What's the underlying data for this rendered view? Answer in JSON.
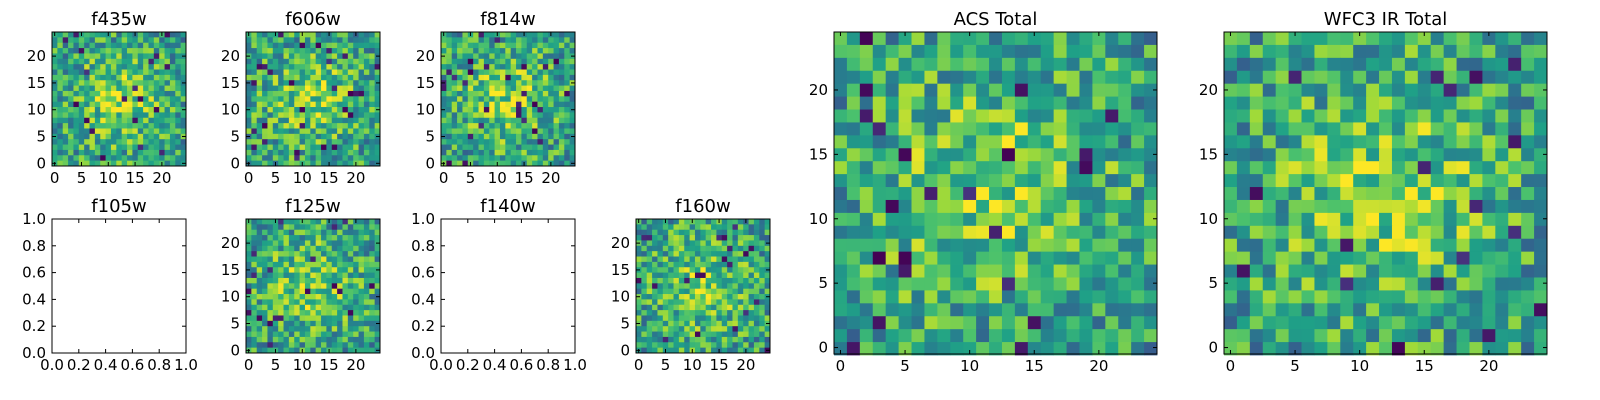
{
  "figure": {
    "panels": [
      {
        "key": "f435w",
        "title": "f435w",
        "kind": "image",
        "xticks": [
          "0",
          "5",
          "10",
          "15",
          "20"
        ],
        "yticks": [
          "0",
          "5",
          "10",
          "15",
          "20"
        ]
      },
      {
        "key": "f606w",
        "title": "f606w",
        "kind": "image",
        "xticks": [
          "0",
          "5",
          "10",
          "15",
          "20"
        ],
        "yticks": [
          "0",
          "5",
          "10",
          "15",
          "20"
        ]
      },
      {
        "key": "f814w",
        "title": "f814w",
        "kind": "image",
        "xticks": [
          "0",
          "5",
          "10",
          "15",
          "20"
        ],
        "yticks": [
          "0",
          "5",
          "10",
          "15",
          "20"
        ]
      },
      {
        "key": "f105w",
        "title": "f105w",
        "kind": "empty",
        "xticks": [
          "0.0",
          "0.2",
          "0.4",
          "0.6",
          "0.8",
          "1.0"
        ],
        "yticks": [
          "0.0",
          "0.2",
          "0.4",
          "0.6",
          "0.8",
          "1.0"
        ]
      },
      {
        "key": "f125w",
        "title": "f125w",
        "kind": "image",
        "xticks": [
          "0",
          "5",
          "10",
          "15",
          "20"
        ],
        "yticks": [
          "0",
          "5",
          "10",
          "15",
          "20"
        ]
      },
      {
        "key": "f140w",
        "title": "f140w",
        "kind": "empty",
        "xticks": [
          "0.0",
          "0.2",
          "0.4",
          "0.6",
          "0.8",
          "1.0"
        ],
        "yticks": [
          "0.0",
          "0.2",
          "0.4",
          "0.6",
          "0.8",
          "1.0"
        ]
      },
      {
        "key": "f160w",
        "title": "f160w",
        "kind": "image",
        "xticks": [
          "0",
          "5",
          "10",
          "15",
          "20"
        ],
        "yticks": [
          "0",
          "5",
          "10",
          "15",
          "20"
        ]
      },
      {
        "key": "acs_total",
        "title": "ACS Total",
        "kind": "image",
        "xticks": [
          "0",
          "5",
          "10",
          "15",
          "20"
        ],
        "yticks": [
          "0",
          "5",
          "10",
          "15",
          "20"
        ]
      },
      {
        "key": "wfc3_ir_total",
        "title": "WFC3 IR Total",
        "kind": "image",
        "xticks": [
          "0",
          "5",
          "10",
          "15",
          "20"
        ],
        "yticks": [
          "0",
          "5",
          "10",
          "15",
          "20"
        ]
      }
    ]
  },
  "chart_data": [
    {
      "type": "heatmap",
      "title": "f435w",
      "grid": [
        25,
        25
      ],
      "xlim": [
        -0.5,
        24.5
      ],
      "ylim": [
        -0.5,
        24.5
      ],
      "colormap": "viridis",
      "pattern": "noise"
    },
    {
      "type": "heatmap",
      "title": "f606w",
      "grid": [
        25,
        25
      ],
      "xlim": [
        -0.5,
        24.5
      ],
      "ylim": [
        -0.5,
        24.5
      ],
      "colormap": "viridis",
      "pattern": "noise"
    },
    {
      "type": "heatmap",
      "title": "f814w",
      "grid": [
        25,
        25
      ],
      "xlim": [
        -0.5,
        24.5
      ],
      "ylim": [
        -0.5,
        24.5
      ],
      "colormap": "viridis",
      "pattern": "noise"
    },
    {
      "type": "heatmap",
      "title": "f105w",
      "grid": [
        0,
        0
      ],
      "xlim": [
        0,
        1
      ],
      "ylim": [
        0,
        1
      ],
      "empty": true
    },
    {
      "type": "heatmap",
      "title": "f125w",
      "grid": [
        25,
        25
      ],
      "xlim": [
        -0.5,
        24.5
      ],
      "ylim": [
        -0.5,
        24.5
      ],
      "colormap": "viridis",
      "pattern": "noise"
    },
    {
      "type": "heatmap",
      "title": "f140w",
      "grid": [
        0,
        0
      ],
      "xlim": [
        0,
        1
      ],
      "ylim": [
        0,
        1
      ],
      "empty": true
    },
    {
      "type": "heatmap",
      "title": "f160w",
      "grid": [
        25,
        25
      ],
      "xlim": [
        -0.5,
        24.5
      ],
      "ylim": [
        -0.5,
        24.5
      ],
      "colormap": "viridis",
      "pattern": "noise"
    },
    {
      "type": "heatmap",
      "title": "ACS Total",
      "grid": [
        25,
        25
      ],
      "xlim": [
        -0.5,
        24.5
      ],
      "ylim": [
        -0.5,
        24.5
      ],
      "colormap": "viridis",
      "pattern": "noise"
    },
    {
      "type": "heatmap",
      "title": "WFC3 IR Total",
      "grid": [
        25,
        25
      ],
      "xlim": [
        -0.5,
        24.5
      ],
      "ylim": [
        -0.5,
        24.5
      ],
      "colormap": "viridis",
      "pattern": "noise"
    }
  ]
}
